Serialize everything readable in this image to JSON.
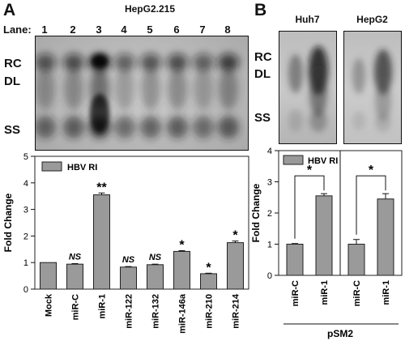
{
  "panel_a": {
    "letter": "A",
    "cell_line": "HepG2.215",
    "lane_label": "Lane:",
    "lanes": [
      "1",
      "2",
      "3",
      "4",
      "5",
      "6",
      "7",
      "8"
    ],
    "band_labels": {
      "rc": "RC",
      "dl": "DL",
      "ss": "SS"
    }
  },
  "panel_b": {
    "letter": "B",
    "blot_titles": [
      "Huh7",
      "HepG2"
    ],
    "band_labels": {
      "rc": "RC",
      "dl": "DL",
      "ss": "SS"
    },
    "plasmid_label": "pSM2"
  },
  "colors": {
    "bar_fill": "#9a9a9a",
    "bar_edge": "#222222",
    "background": "#ffffff"
  },
  "chart_data": [
    {
      "type": "bar",
      "legend": "HBV RI",
      "legend_position": "top-left",
      "ylabel": "Fold Change",
      "ylim": [
        0,
        5
      ],
      "yticks": [
        0,
        1,
        2,
        3,
        4,
        5
      ],
      "categories": [
        "Mock",
        "miR-C",
        "miR-1",
        "miR-122",
        "miR-132",
        "miR-146a",
        "miR-210",
        "miR-214"
      ],
      "values": [
        1.0,
        0.94,
        3.55,
        0.83,
        0.92,
        1.42,
        0.58,
        1.75
      ],
      "errors": [
        0.0,
        0.02,
        0.07,
        0.02,
        0.02,
        0.03,
        0.02,
        0.06
      ],
      "annotations": [
        "",
        "NS",
        "**",
        "NS",
        "NS",
        "*",
        "*",
        "*"
      ]
    },
    {
      "type": "bar",
      "legend": "HBV RI",
      "legend_position": "top-left",
      "ylabel": "Fold Change",
      "ylim": [
        0,
        4
      ],
      "yticks": [
        0,
        1,
        2,
        3,
        4
      ],
      "groups": [
        {
          "name": "Huh7",
          "categories": [
            "miR-C",
            "miR-1"
          ],
          "values": [
            1.0,
            2.55
          ],
          "errors": [
            0.02,
            0.07
          ],
          "significance": "*"
        },
        {
          "name": "HepG2",
          "categories": [
            "miR-C",
            "miR-1"
          ],
          "values": [
            1.0,
            2.45
          ],
          "errors": [
            0.15,
            0.17
          ],
          "significance": "*"
        }
      ]
    }
  ]
}
